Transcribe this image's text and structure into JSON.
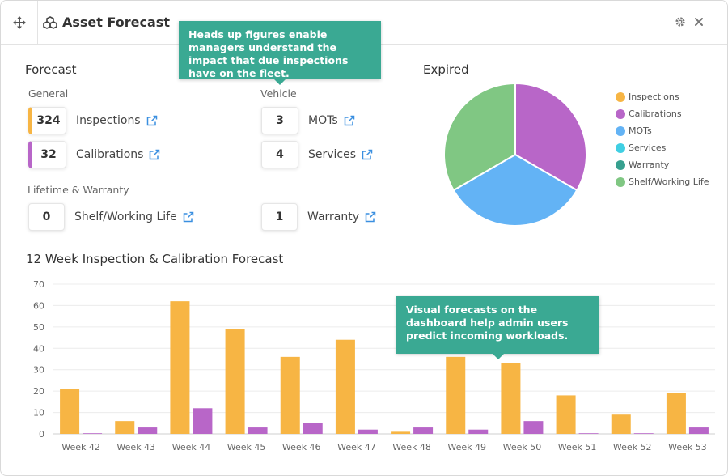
{
  "header": {
    "title": "Asset Forecast",
    "icons": {
      "drag": "move-icon",
      "title": "cubes-icon",
      "settings": "gear-icon",
      "close": "close-icon"
    }
  },
  "forecast": {
    "title": "Forecast",
    "general": {
      "label": "General",
      "items": [
        {
          "value": "324",
          "label": "Inspections",
          "accent": "#f7b544"
        },
        {
          "value": "32",
          "label": "Calibrations",
          "accent": "#b866c8"
        }
      ]
    },
    "vehicle": {
      "label": "Vehicle",
      "items": [
        {
          "value": "3",
          "label": "MOTs"
        },
        {
          "value": "4",
          "label": "Services"
        }
      ]
    },
    "lifetime": {
      "label": "Lifetime & Warranty",
      "items": [
        {
          "value": "0",
          "label": "Shelf/Working Life"
        },
        {
          "value": "1",
          "label": "Warranty"
        }
      ]
    }
  },
  "expired": {
    "title": "Expired",
    "legend": [
      {
        "label": "Inspections",
        "color": "#f7b544"
      },
      {
        "label": "Calibrations",
        "color": "#b866c8"
      },
      {
        "label": "MOTs",
        "color": "#63b3f5"
      },
      {
        "label": "Services",
        "color": "#40cfe3"
      },
      {
        "label": "Warranty",
        "color": "#37a08f"
      },
      {
        "label": "Shelf/Working Life",
        "color": "#80c783"
      }
    ]
  },
  "callouts": {
    "top": "Heads up figures enable managers understand the impact that due inspections have on the fleet.",
    "bottom": "Visual forecasts on the dashboard help admin users predict incoming workloads."
  },
  "chart_data": [
    {
      "type": "pie",
      "title": "Expired",
      "labels": [
        "Inspections",
        "Calibrations",
        "MOTs",
        "Services",
        "Warranty",
        "Shelf/Working Life"
      ],
      "values": [
        0,
        1,
        1,
        0,
        0,
        1
      ],
      "colors": [
        "#f7b544",
        "#b866c8",
        "#63b3f5",
        "#40cfe3",
        "#37a08f",
        "#80c783"
      ],
      "legend": "right"
    },
    {
      "type": "bar",
      "title": "12 Week Inspection & Calibration Forecast",
      "categories": [
        "Week 42",
        "Week 43",
        "Week 44",
        "Week 45",
        "Week 46",
        "Week 47",
        "Week 48",
        "Week 49",
        "Week 50",
        "Week 51",
        "Week 52",
        "Week 53"
      ],
      "series": [
        {
          "values": [
            21,
            6,
            62,
            49,
            36,
            44,
            1,
            36,
            33,
            18,
            9,
            19
          ],
          "color": "#f7b544"
        },
        {
          "values": [
            0.3,
            3,
            12,
            3,
            5,
            2,
            3,
            2,
            6,
            0.3,
            0.3,
            3
          ],
          "color": "#b866c8"
        }
      ],
      "ylim": [
        0,
        70
      ],
      "yticks": [
        0,
        10,
        20,
        30,
        40,
        50,
        60,
        70
      ],
      "grid": true
    }
  ]
}
